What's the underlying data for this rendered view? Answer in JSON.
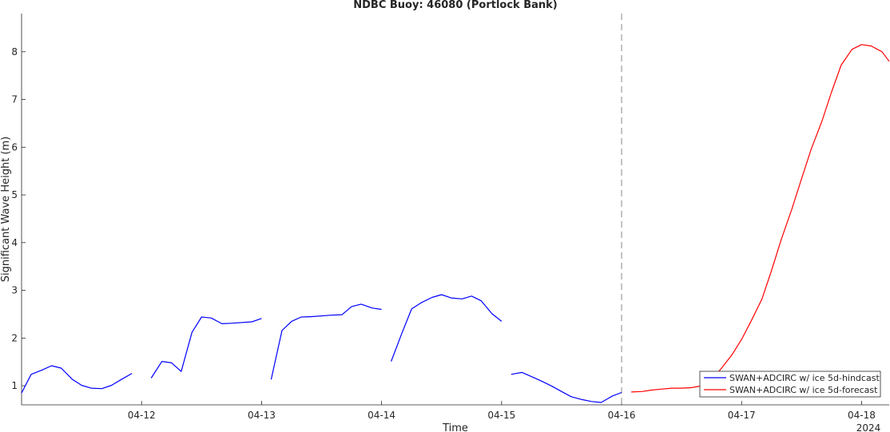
{
  "chart_data": {
    "type": "line",
    "title": "NDBC Buoy: 46080 (Portlock Bank)",
    "xlabel": "Time",
    "ylabel": "Significant Wave Height (m)",
    "x_ticks": [
      "04-12",
      "04-13",
      "04-14",
      "04-15",
      "04-16",
      "04-17",
      "04-18"
    ],
    "x_tick_days": [
      12,
      13,
      14,
      15,
      16,
      17,
      18
    ],
    "x_secondary_label": "2024",
    "y_ticks": [
      1,
      2,
      3,
      4,
      5,
      6,
      7,
      8
    ],
    "xlim": [
      11.0,
      18.23
    ],
    "ylim": [
      0.6,
      8.8
    ],
    "grid": false,
    "legend_position": "lower-right",
    "reference_line": {
      "x": 16.0,
      "style": "dashed",
      "color": "#888888"
    },
    "series": [
      {
        "name": "SWAN+ADCIRC w/ ice 5d-hindcast",
        "color": "#0000ff",
        "segments": [
          [
            [
              11.0,
              0.85
            ],
            [
              11.08,
              1.24
            ],
            [
              11.17,
              1.33
            ],
            [
              11.25,
              1.42
            ],
            [
              11.33,
              1.37
            ],
            [
              11.42,
              1.14
            ],
            [
              11.5,
              1.01
            ],
            [
              11.58,
              0.95
            ],
            [
              11.67,
              0.94
            ],
            [
              11.75,
              1.01
            ],
            [
              11.83,
              1.13
            ],
            [
              11.92,
              1.26
            ]
          ],
          [
            [
              12.08,
              1.16
            ],
            [
              12.17,
              1.51
            ],
            [
              12.25,
              1.48
            ],
            [
              12.33,
              1.3
            ],
            [
              12.42,
              2.12
            ],
            [
              12.5,
              2.44
            ],
            [
              12.58,
              2.42
            ],
            [
              12.67,
              2.3
            ],
            [
              12.75,
              2.31
            ],
            [
              12.92,
              2.34
            ],
            [
              13.0,
              2.41
            ]
          ],
          [
            [
              13.08,
              1.13
            ],
            [
              13.17,
              2.16
            ],
            [
              13.25,
              2.35
            ],
            [
              13.33,
              2.44
            ],
            [
              13.42,
              2.45
            ],
            [
              13.58,
              2.48
            ],
            [
              13.67,
              2.49
            ],
            [
              13.75,
              2.66
            ],
            [
              13.83,
              2.71
            ],
            [
              13.92,
              2.63
            ],
            [
              14.0,
              2.6
            ]
          ],
          [
            [
              14.08,
              1.51
            ],
            [
              14.17,
              2.11
            ],
            [
              14.25,
              2.61
            ],
            [
              14.33,
              2.74
            ],
            [
              14.42,
              2.85
            ],
            [
              14.5,
              2.91
            ],
            [
              14.58,
              2.84
            ],
            [
              14.67,
              2.82
            ],
            [
              14.75,
              2.88
            ],
            [
              14.83,
              2.78
            ],
            [
              14.92,
              2.51
            ],
            [
              15.0,
              2.35
            ]
          ],
          [
            [
              15.08,
              1.24
            ],
            [
              15.17,
              1.28
            ],
            [
              15.25,
              1.19
            ],
            [
              15.33,
              1.1
            ],
            [
              15.42,
              0.99
            ],
            [
              15.5,
              0.88
            ],
            [
              15.58,
              0.77
            ],
            [
              15.67,
              0.71
            ],
            [
              15.75,
              0.67
            ],
            [
              15.83,
              0.65
            ],
            [
              15.92,
              0.78
            ],
            [
              16.0,
              0.86
            ]
          ]
        ]
      },
      {
        "name": "SWAN+ADCIRC w/ ice 5d-forecast",
        "color": "#ff0000",
        "segments": [
          [
            [
              16.08,
              0.87
            ],
            [
              16.17,
              0.88
            ],
            [
              16.25,
              0.91
            ],
            [
              16.33,
              0.93
            ],
            [
              16.42,
              0.95
            ],
            [
              16.5,
              0.95
            ],
            [
              16.58,
              0.96
            ],
            [
              16.67,
              1.0
            ],
            [
              16.75,
              1.12
            ],
            [
              16.83,
              1.36
            ],
            [
              16.92,
              1.65
            ],
            [
              17.0,
              1.97
            ],
            [
              17.08,
              2.36
            ],
            [
              17.17,
              2.82
            ],
            [
              17.25,
              3.42
            ],
            [
              17.33,
              4.06
            ],
            [
              17.42,
              4.71
            ],
            [
              17.5,
              5.34
            ],
            [
              17.58,
              5.96
            ],
            [
              17.67,
              6.55
            ],
            [
              17.75,
              7.16
            ],
            [
              17.83,
              7.72
            ],
            [
              17.92,
              8.05
            ],
            [
              18.0,
              8.15
            ],
            [
              18.08,
              8.12
            ],
            [
              18.17,
              8.0
            ],
            [
              18.23,
              7.8
            ]
          ]
        ]
      }
    ]
  }
}
